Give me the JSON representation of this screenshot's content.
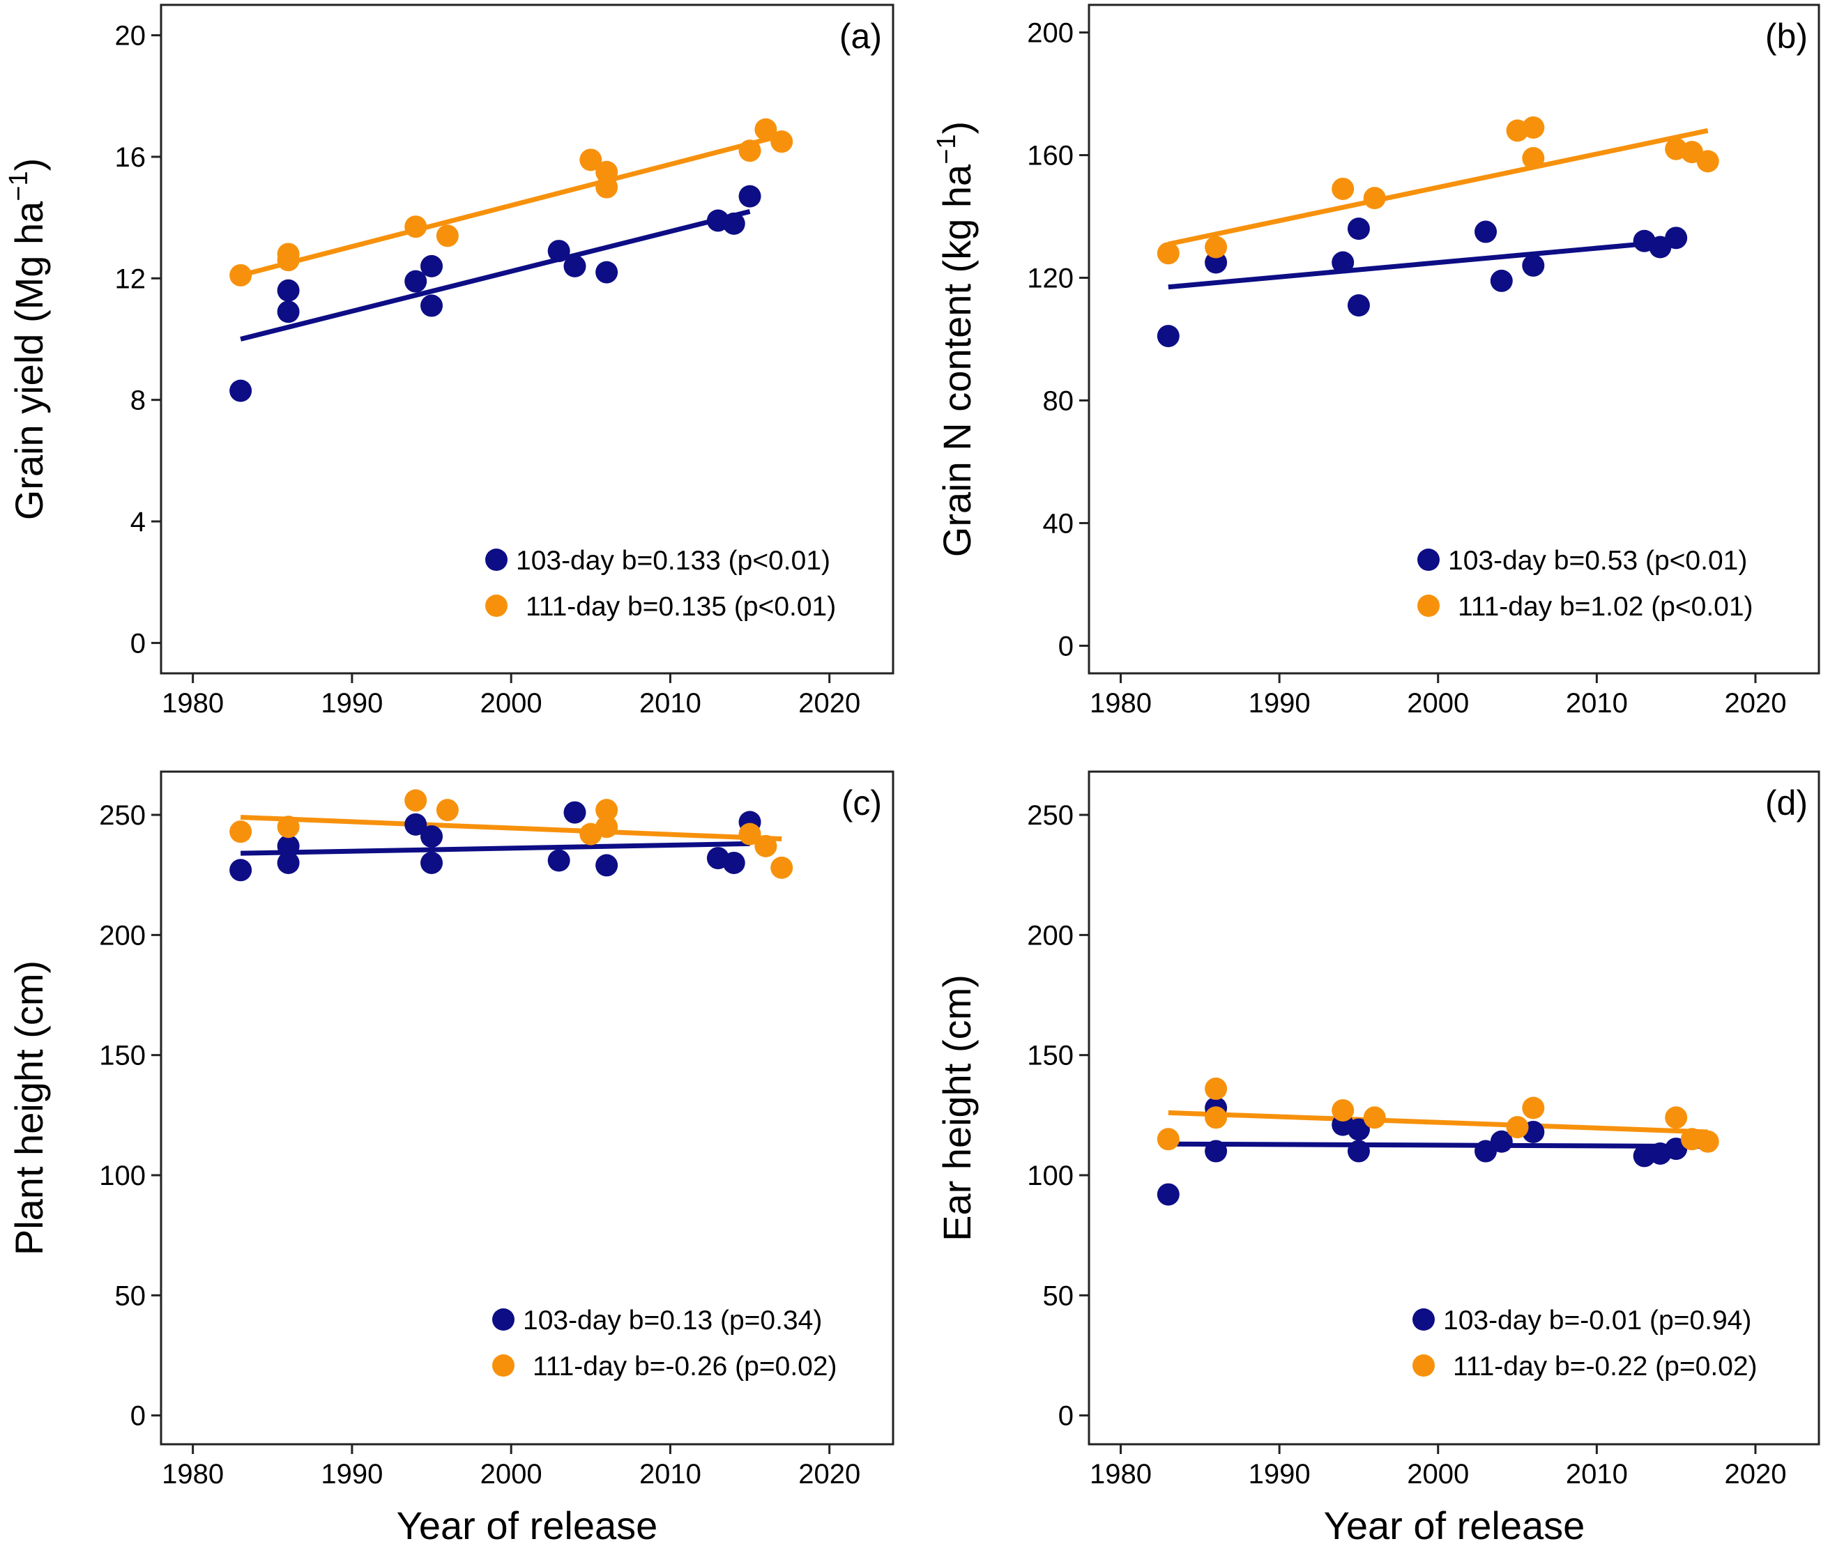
{
  "figure": {
    "x_axis_title": "Year of release",
    "colors": {
      "series_103": "#0d0d85",
      "series_111": "#f7910c"
    }
  },
  "chart_data": [
    {
      "type": "scatter",
      "panel": "(a)",
      "ylabel": "Grain yield (Mg ha",
      "ylabel_sup": "−1",
      "ylabel_end": ")",
      "xlabel": "Year of release",
      "xlim": [
        1978,
        2024
      ],
      "ylim": [
        -1,
        21
      ],
      "xticks": [
        1980,
        1990,
        2000,
        2010,
        2020
      ],
      "yticks": [
        0,
        4,
        8,
        12,
        16,
        20
      ],
      "grid": false,
      "legend_position": "bottom-right",
      "series": [
        {
          "name": "103-day",
          "legend": "103-day b=0.133 (p<0.01)",
          "color": "#0d0d85",
          "points": [
            [
              1983,
              8.3
            ],
            [
              1986,
              11.6
            ],
            [
              1986,
              10.9
            ],
            [
              1994,
              11.9
            ],
            [
              1995,
              12.4
            ],
            [
              1995,
              11.1
            ],
            [
              2003,
              12.9
            ],
            [
              2004,
              12.4
            ],
            [
              2006,
              12.2
            ],
            [
              2013,
              13.9
            ],
            [
              2014,
              13.8
            ],
            [
              2015,
              14.7
            ]
          ],
          "fit": [
            [
              1983,
              10.0
            ],
            [
              2015,
              14.2
            ]
          ]
        },
        {
          "name": "111-day",
          "legend": "111-day b=0.135 (p<0.01)",
          "color": "#f7910c",
          "points": [
            [
              1983,
              12.1
            ],
            [
              1986,
              12.8
            ],
            [
              1986,
              12.6
            ],
            [
              1994,
              13.7
            ],
            [
              1996,
              13.4
            ],
            [
              2005,
              15.9
            ],
            [
              2006,
              15.5
            ],
            [
              2006,
              15.0
            ],
            [
              2015,
              16.2
            ],
            [
              2016,
              16.9
            ],
            [
              2017,
              16.5
            ]
          ],
          "fit": [
            [
              1983,
              12.1
            ],
            [
              2017,
              16.7
            ]
          ]
        }
      ]
    },
    {
      "type": "scatter",
      "panel": "(b)",
      "ylabel": "Grain N content (kg ha",
      "ylabel_sup": "−1",
      "ylabel_end": ")",
      "xlabel": "Year of release",
      "xlim": [
        1978,
        2024
      ],
      "ylim": [
        -9,
        209
      ],
      "xticks": [
        1980,
        1990,
        2000,
        2010,
        2020
      ],
      "yticks": [
        0,
        40,
        80,
        120,
        160,
        200
      ],
      "grid": false,
      "legend_position": "bottom-right",
      "series": [
        {
          "name": "103-day",
          "legend": "103-day b=0.53 (p<0.01)",
          "color": "#0d0d85",
          "points": [
            [
              1983,
              101
            ],
            [
              1986,
              125
            ],
            [
              1994,
              125
            ],
            [
              1995,
              136
            ],
            [
              1995,
              111
            ],
            [
              2003,
              135
            ],
            [
              2004,
              119
            ],
            [
              2006,
              124
            ],
            [
              2013,
              132
            ],
            [
              2014,
              130
            ],
            [
              2015,
              133
            ]
          ],
          "fit": [
            [
              1983,
              117
            ],
            [
              2015,
              132
            ]
          ]
        },
        {
          "name": "111-day",
          "legend": "111-day b=1.02 (p<0.01)",
          "color": "#f7910c",
          "points": [
            [
              1983,
              128
            ],
            [
              1986,
              130
            ],
            [
              1994,
              149
            ],
            [
              1996,
              146
            ],
            [
              2005,
              168
            ],
            [
              2006,
              169
            ],
            [
              2006,
              159
            ],
            [
              2015,
              162
            ],
            [
              2016,
              161
            ],
            [
              2017,
              158
            ]
          ],
          "fit": [
            [
              1983,
              131
            ],
            [
              2017,
              168
            ]
          ]
        }
      ]
    },
    {
      "type": "scatter",
      "panel": "(c)",
      "ylabel": "Plant height (cm)",
      "ylabel_sup": "",
      "ylabel_end": "",
      "xlabel": "Year of release",
      "xlim": [
        1978,
        2024
      ],
      "ylim": [
        -12,
        268
      ],
      "xticks": [
        1980,
        1990,
        2000,
        2010,
        2020
      ],
      "yticks": [
        0,
        50,
        100,
        150,
        200,
        250
      ],
      "grid": false,
      "legend_position": "bottom-right",
      "series": [
        {
          "name": "103-day",
          "legend": "103-day b=0.13 (p=0.34)",
          "color": "#0d0d85",
          "points": [
            [
              1983,
              227
            ],
            [
              1986,
              230
            ],
            [
              1986,
              237
            ],
            [
              1994,
              246
            ],
            [
              1995,
              241
            ],
            [
              1995,
              230
            ],
            [
              2003,
              231
            ],
            [
              2004,
              251
            ],
            [
              2006,
              229
            ],
            [
              2013,
              232
            ],
            [
              2014,
              230
            ],
            [
              2015,
              247
            ]
          ],
          "fit": [
            [
              1983,
              234
            ],
            [
              2015,
              238
            ]
          ]
        },
        {
          "name": "111-day",
          "legend": "111-day b=-0.26 (p=0.02)",
          "color": "#f7910c",
          "points": [
            [
              1983,
              243
            ],
            [
              1986,
              245
            ],
            [
              1994,
              256
            ],
            [
              1996,
              252
            ],
            [
              2005,
              242
            ],
            [
              2006,
              252
            ],
            [
              2006,
              245
            ],
            [
              2015,
              242
            ],
            [
              2016,
              237
            ],
            [
              2017,
              228
            ]
          ],
          "fit": [
            [
              1983,
              249
            ],
            [
              2017,
              240
            ]
          ]
        }
      ]
    },
    {
      "type": "scatter",
      "panel": "(d)",
      "ylabel": "Ear height (cm)",
      "ylabel_sup": "",
      "ylabel_end": "",
      "xlabel": "Year of release",
      "xlim": [
        1978,
        2024
      ],
      "ylim": [
        -12,
        268
      ],
      "xticks": [
        1980,
        1990,
        2000,
        2010,
        2020
      ],
      "yticks": [
        0,
        50,
        100,
        150,
        200,
        250
      ],
      "grid": false,
      "legend_position": "bottom-right",
      "series": [
        {
          "name": "103-day",
          "legend": "103-day b=-0.01 (p=0.94)",
          "color": "#0d0d85",
          "points": [
            [
              1983,
              92
            ],
            [
              1986,
              128
            ],
            [
              1986,
              110
            ],
            [
              1994,
              121
            ],
            [
              1995,
              119
            ],
            [
              1995,
              110
            ],
            [
              2003,
              110
            ],
            [
              2004,
              114
            ],
            [
              2006,
              118
            ],
            [
              2013,
              108
            ],
            [
              2014,
              109
            ],
            [
              2015,
              111
            ]
          ],
          "fit": [
            [
              1983,
              113
            ],
            [
              2017,
              112
            ]
          ]
        },
        {
          "name": "111-day",
          "legend": "111-day b=-0.22 (p=0.02)",
          "color": "#f7910c",
          "points": [
            [
              1983,
              115
            ],
            [
              1986,
              136
            ],
            [
              1986,
              124
            ],
            [
              1994,
              127
            ],
            [
              1996,
              124
            ],
            [
              2005,
              120
            ],
            [
              2006,
              128
            ],
            [
              2015,
              124
            ],
            [
              2016,
              115
            ],
            [
              2017,
              114
            ]
          ],
          "fit": [
            [
              1983,
              126
            ],
            [
              2017,
              118
            ]
          ]
        }
      ]
    }
  ]
}
